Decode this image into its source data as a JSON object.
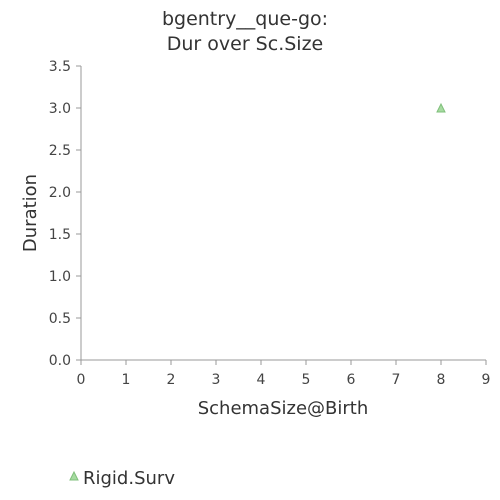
{
  "chart_data": {
    "type": "scatter",
    "title": [
      "bgentry__que-go:",
      "Dur over Sc.Size"
    ],
    "xlabel": "SchemaSize@Birth",
    "ylabel": "Duration",
    "xlim": [
      0,
      9
    ],
    "ylim": [
      0,
      3.5
    ],
    "x_ticks": [
      "0",
      "1",
      "2",
      "3",
      "4",
      "5",
      "6",
      "7",
      "8",
      "9"
    ],
    "y_ticks": [
      "0.0",
      "0.5",
      "1.0",
      "1.5",
      "2.0",
      "2.5",
      "3.0",
      "3.5"
    ],
    "grid": false,
    "legend_position": "bottom-left",
    "series": [
      {
        "name": "Rigid.Surv",
        "marker": "triangle",
        "color": "#a6dba0",
        "stroke": "#7fbf7b",
        "points": [
          {
            "x": 8,
            "y": 3.0
          }
        ]
      }
    ]
  }
}
